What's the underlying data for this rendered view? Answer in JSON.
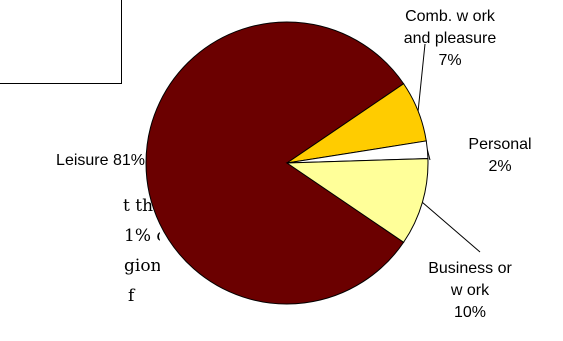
{
  "slide": {
    "body_lines": [
      "t the",
      "1% of",
      "gion",
      "f"
    ]
  },
  "chart_data": {
    "type": "pie",
    "title": "",
    "slices": [
      {
        "label": "Leisure 81%",
        "value": 81,
        "color": "#6b0000"
      },
      {
        "label": "Comb. w ork\nand pleasure\n7%",
        "value": 7,
        "color": "#ffcc00"
      },
      {
        "label": "Personal\n2%",
        "value": 2,
        "color": "#ffffff"
      },
      {
        "label": "Business or\nw ork\n10%",
        "value": 10,
        "color": "#ffff99"
      }
    ],
    "legend": "none"
  }
}
